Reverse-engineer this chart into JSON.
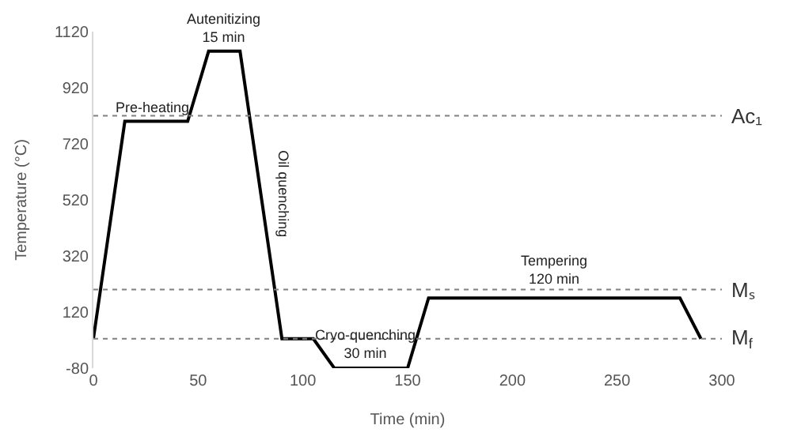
{
  "chart_data": {
    "type": "line",
    "xlabel": "Time (min)",
    "ylabel": "Temperature (°C)",
    "x": [
      0,
      15,
      45,
      55,
      70,
      90,
      105,
      115,
      150,
      160,
      280,
      290
    ],
    "series": [
      {
        "color": "#000000",
        "values": [
          25,
          800,
          800,
          1050,
          1050,
          25,
          25,
          -80,
          -80,
          170,
          170,
          25
        ]
      }
    ],
    "xlim": [
      0,
      300
    ],
    "xticks": [
      0,
      50,
      100,
      150,
      200,
      250,
      300
    ],
    "ylim": [
      -80,
      1120
    ],
    "yticks": [
      -80,
      120,
      320,
      520,
      720,
      920,
      1120
    ],
    "legend": false,
    "marker": "none",
    "line_style": "solid",
    "ref_lines": [
      {
        "axis": "y",
        "value": 820,
        "label": "Ac₁",
        "color": "#808080",
        "line_style": "dotted"
      },
      {
        "axis": "y",
        "value": 200,
        "label": "Mₛ",
        "color": "#808080",
        "line_style": "dotted"
      },
      {
        "axis": "y",
        "value": 25,
        "label": "M$_{f}$",
        "color": "#808080",
        "line_style": "dotted"
      }
    ],
    "annotations": [
      {
        "text": "Pre-heating",
        "x": 28,
        "y": 800
      },
      {
        "text": "Autenitizing\n15 min",
        "x": 62,
        "y": 1050
      },
      {
        "text": "Oil quenching",
        "x": 80,
        "y": 540
      },
      {
        "text": "Cryo-quenching\n30 min",
        "x": 130,
        "y": -80
      },
      {
        "text": "Tempering\n120 min",
        "x": 220,
        "y": 170
      }
    ]
  }
}
